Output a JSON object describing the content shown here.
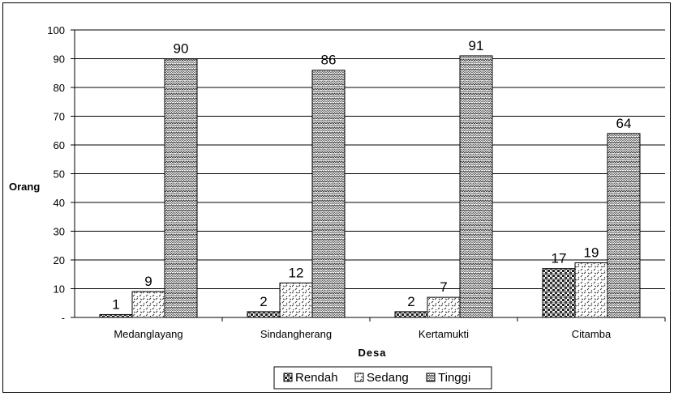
{
  "chart_data": {
    "type": "bar",
    "categories": [
      "Medanglayang",
      "Sindangherang",
      "Kertamukti",
      "Citamba"
    ],
    "series": [
      {
        "name": "Rendah",
        "values": [
          1,
          2,
          2,
          17
        ],
        "pattern": "check"
      },
      {
        "name": "Sedang",
        "values": [
          9,
          12,
          7,
          19
        ],
        "pattern": "dot"
      },
      {
        "name": "Tinggi",
        "values": [
          90,
          86,
          91,
          64
        ],
        "pattern": "zigzag"
      }
    ],
    "data_labels": [
      [
        "1",
        "9",
        "90"
      ],
      [
        "2",
        "12",
        "86"
      ],
      [
        "2",
        "7",
        "91"
      ],
      [
        "17",
        "19",
        "64"
      ]
    ],
    "xlabel": "Desa",
    "ylabel": "Orang",
    "ylim": [
      0,
      100
    ],
    "yticks": [
      "-",
      "10",
      "20",
      "30",
      "40",
      "50",
      "60",
      "70",
      "80",
      "90",
      "100"
    ],
    "grid": true,
    "legend_position": "bottom"
  }
}
